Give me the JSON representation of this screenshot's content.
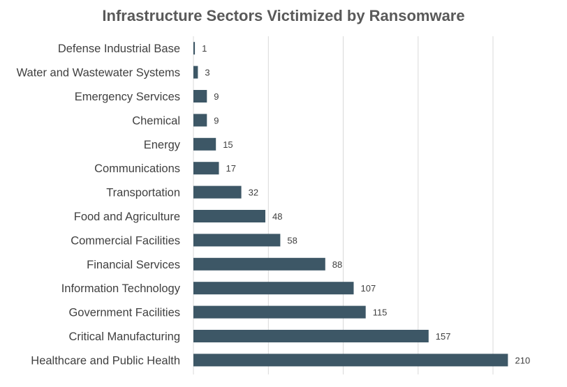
{
  "chart_data": {
    "type": "bar",
    "orientation": "horizontal",
    "title": "Infrastructure Sectors Victimized by Ransomware",
    "xlabel": "",
    "ylabel": "",
    "categories": [
      "Defense Industrial Base",
      "Water and Wastewater Systems",
      "Emergency Services",
      "Chemical",
      "Energy",
      "Communications",
      "Transportation",
      "Food and Agriculture",
      "Commercial Facilities",
      "Financial Services",
      "Information Technology",
      "Government Facilities",
      "Critical Manufacturing",
      "Healthcare and Public Health"
    ],
    "values": [
      1,
      3,
      9,
      9,
      15,
      17,
      32,
      48,
      58,
      88,
      107,
      115,
      157,
      210
    ],
    "xlim": [
      0,
      250
    ],
    "grid": true,
    "legend": "none",
    "colors": {
      "bar": "#3d5766",
      "grid": "#d9d9d9",
      "title": "#595959",
      "text": "#404040"
    }
  }
}
